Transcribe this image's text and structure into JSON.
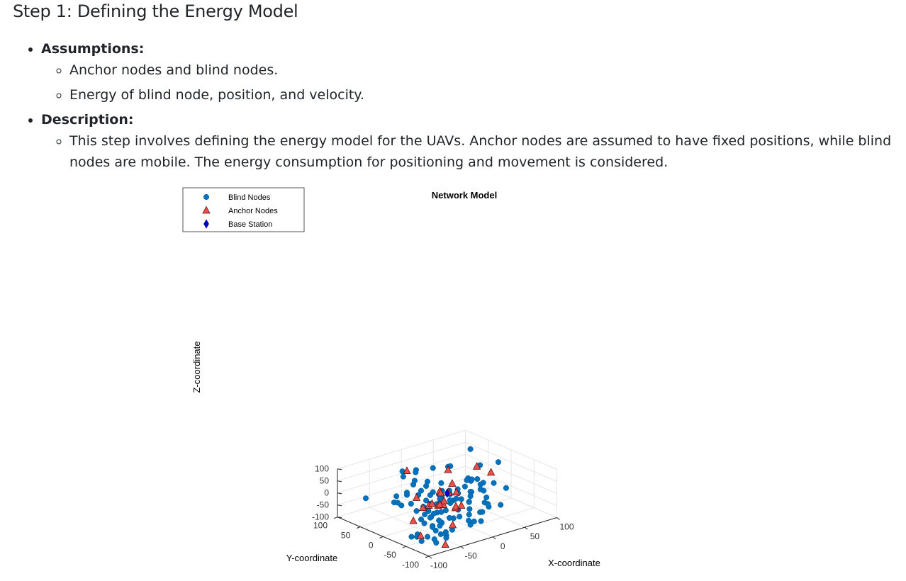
{
  "heading": "Step 1: Defining the Energy Model",
  "assumptions": {
    "label": "Assumptions:",
    "items": [
      "Anchor nodes and blind nodes.",
      "Energy of blind node, position, and velocity."
    ]
  },
  "description": {
    "label": "Description:",
    "items": [
      "This step involves defining the energy model for the UAVs. Anchor nodes are assumed to have fixed positions, while blind nodes are mobile. The energy consumption for positioning and movement is considered."
    ]
  },
  "colors": {
    "blind": "#0072BD",
    "anchor": "#EF4F48",
    "base": "#0000CC",
    "grid": "#e6e6e6",
    "axis": "#222222"
  },
  "chart_data": {
    "type": "scatter3d",
    "title": "Network Model",
    "xlabel": "X-coordinate",
    "ylabel": "Y-coordinate",
    "zlabel": "Z-coordinate",
    "xlim": [
      -100,
      100
    ],
    "ylim": [
      -100,
      100
    ],
    "zlim": [
      -100,
      100
    ],
    "xticks": [
      "-100",
      "-50",
      "0",
      "50",
      "100"
    ],
    "yticks": [
      "-100",
      "-50",
      "0",
      "50",
      "100"
    ],
    "zticks": [
      "-100",
      "-50",
      "0",
      "50",
      "100"
    ],
    "grid": true,
    "legend_position": "top-left",
    "series": [
      {
        "name": "Blind Nodes",
        "marker": "circle",
        "points": [
          [
            -45,
            -90,
            12
          ],
          [
            -80,
            -55,
            0
          ],
          [
            -85,
            -95,
            -60
          ],
          [
            -28,
            -25,
            10
          ],
          [
            -70,
            -95,
            -28
          ],
          [
            -95,
            -55,
            -60
          ],
          [
            -70,
            -70,
            -78
          ],
          [
            -20,
            -30,
            40
          ],
          [
            -15,
            -10,
            30
          ],
          [
            -40,
            -70,
            -15
          ],
          [
            -5,
            -30,
            45
          ],
          [
            -10,
            -20,
            20
          ],
          [
            10,
            -25,
            40
          ],
          [
            -55,
            -45,
            -55
          ],
          [
            -5,
            -55,
            12
          ],
          [
            30,
            -10,
            35
          ],
          [
            20,
            -25,
            10
          ],
          [
            -70,
            -55,
            -80
          ],
          [
            -50,
            -35,
            -30
          ],
          [
            -15,
            -45,
            -20
          ],
          [
            -55,
            -65,
            -25
          ],
          [
            -35,
            -60,
            -75
          ],
          [
            -30,
            -30,
            -75
          ],
          [
            -25,
            -40,
            -50
          ],
          [
            -30,
            -20,
            -40
          ],
          [
            -55,
            -40,
            -25
          ],
          [
            -75,
            -40,
            -78
          ],
          [
            -90,
            -70,
            -70
          ],
          [
            -75,
            -80,
            -30
          ],
          [
            -65,
            -75,
            -22
          ],
          [
            -5,
            -20,
            -10
          ],
          [
            40,
            -35,
            -60
          ],
          [
            30,
            -40,
            -30
          ],
          [
            -20,
            -15,
            -50
          ],
          [
            70,
            25,
            -40
          ],
          [
            -5,
            5,
            -10
          ],
          [
            20,
            -20,
            -35
          ],
          [
            55,
            -40,
            -60
          ],
          [
            5,
            -40,
            -85
          ],
          [
            40,
            -30,
            -25
          ],
          [
            5,
            0,
            -45
          ],
          [
            -30,
            10,
            -40
          ],
          [
            -40,
            -15,
            -30
          ],
          [
            -20,
            60,
            -40
          ],
          [
            -5,
            35,
            -90
          ],
          [
            -20,
            -5,
            -25
          ],
          [
            10,
            -35,
            -45
          ],
          [
            -40,
            60,
            -55
          ],
          [
            -40,
            55,
            -25
          ],
          [
            -20,
            60,
            -30
          ],
          [
            -40,
            -10,
            10
          ],
          [
            10,
            45,
            60
          ],
          [
            -20,
            -25,
            -35
          ],
          [
            -15,
            75,
            20
          ],
          [
            30,
            35,
            60
          ],
          [
            55,
            75,
            5
          ],
          [
            55,
            90,
            -75
          ],
          [
            70,
            25,
            -60
          ],
          [
            -20,
            40,
            80
          ],
          [
            40,
            5,
            -30
          ],
          [
            -10,
            55,
            50
          ],
          [
            -40,
            -10,
            70
          ],
          [
            -35,
            30,
            -40
          ],
          [
            90,
            80,
            -75
          ],
          [
            80,
            10,
            -30
          ],
          [
            -15,
            -80,
            -40
          ],
          [
            -45,
            -45,
            -40
          ],
          [
            -30,
            25,
            -70
          ],
          [
            -50,
            30,
            -35
          ],
          [
            -70,
            80,
            -30
          ],
          [
            80,
            0,
            65
          ],
          [
            5,
            -65,
            -30
          ],
          [
            -20,
            70,
            50
          ],
          [
            25,
            15,
            -55
          ],
          [
            75,
            25,
            -70
          ],
          [
            -5,
            -15,
            -20
          ],
          [
            10,
            45,
            -40
          ],
          [
            -40,
            -40,
            40
          ],
          [
            -75,
            -55,
            -20
          ],
          [
            90,
            75,
            50
          ],
          [
            60,
            -45,
            10
          ],
          [
            -35,
            0,
            -60
          ],
          [
            -10,
            -65,
            -70
          ],
          [
            -90,
            -60,
            -60
          ],
          [
            -60,
            -70,
            -65
          ],
          [
            -10,
            -20,
            -5
          ],
          [
            10,
            -10,
            0
          ],
          [
            -35,
            -20,
            -40
          ],
          [
            35,
            -40,
            -40
          ],
          [
            0,
            -5,
            15
          ],
          [
            -25,
            -25,
            10
          ],
          [
            20,
            -15,
            50
          ],
          [
            -5,
            -55,
            -40
          ],
          [
            60,
            30,
            -15
          ],
          [
            80,
            40,
            20
          ],
          [
            -20,
            35,
            -20
          ],
          [
            -10,
            60,
            -5
          ],
          [
            -30,
            -5,
            20
          ],
          [
            -45,
            45,
            -40
          ],
          [
            30,
            85,
            -45
          ],
          [
            10,
            85,
            -25
          ],
          [
            20,
            85,
            -75
          ],
          [
            5,
            -70,
            -25
          ],
          [
            10,
            -60,
            -75
          ],
          [
            -30,
            -5,
            -15
          ],
          [
            5,
            25,
            -30
          ],
          [
            35,
            -30,
            40
          ],
          [
            -45,
            -20,
            -10
          ],
          [
            -55,
            -45,
            -60
          ],
          [
            40,
            -10,
            35
          ],
          [
            -55,
            -75,
            -70
          ],
          [
            -55,
            -75,
            -80
          ],
          [
            -10,
            -45,
            20
          ],
          [
            15,
            -30,
            0
          ]
        ]
      },
      {
        "name": "Anchor Nodes",
        "marker": "triangle",
        "points": [
          [
            -95,
            -75,
            -40
          ],
          [
            -55,
            -95,
            60
          ],
          [
            -85,
            -45,
            -10
          ],
          [
            -25,
            -15,
            -20
          ],
          [
            -45,
            -75,
            -35
          ],
          [
            -60,
            -80,
            -100
          ],
          [
            5,
            15,
            -65
          ],
          [
            -30,
            -35,
            20
          ],
          [
            -15,
            -5,
            25
          ],
          [
            -25,
            5,
            -35
          ],
          [
            -15,
            -40,
            -10
          ],
          [
            15,
            10,
            20
          ],
          [
            0,
            -20,
            20
          ],
          [
            10,
            30,
            -80
          ],
          [
            15,
            -10,
            -55
          ],
          [
            15,
            35,
            -40
          ],
          [
            90,
            30,
            -10
          ],
          [
            -20,
            25,
            -65
          ],
          [
            100,
            75,
            -30
          ],
          [
            -5,
            -10,
            15
          ],
          [
            -20,
            60,
            60
          ],
          [
            -30,
            25,
            -15
          ],
          [
            30,
            40,
            40
          ],
          [
            5,
            40,
            -80
          ]
        ]
      },
      {
        "name": "Base Station",
        "marker": "diamond",
        "points": [
          [
            0,
            0,
            0
          ]
        ]
      }
    ]
  }
}
